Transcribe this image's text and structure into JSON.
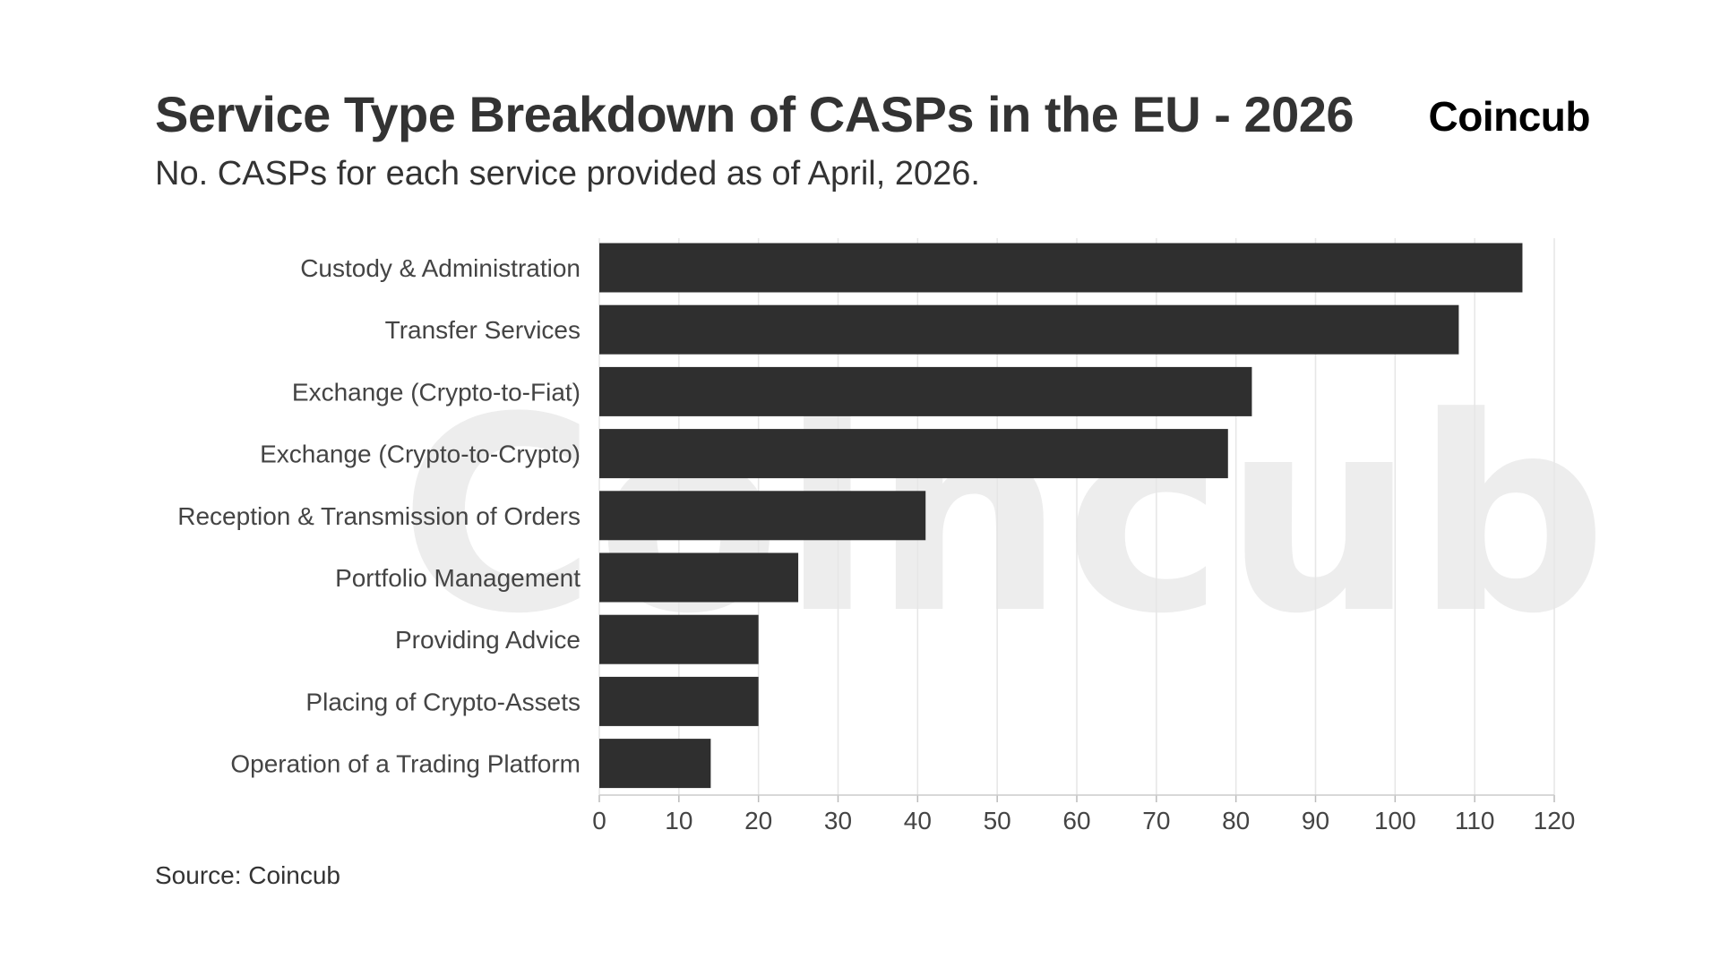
{
  "header": {
    "title": "Service Type Breakdown of CASPs in the EU - 2026",
    "brand": "Coincub"
  },
  "subtitle": "No. CASPs for each service provided as of April, 2026.",
  "source": "Source: Coincub",
  "watermark": "Coincub",
  "colors": {
    "bar": "#2f2f2f",
    "grid": "#e6e6e6",
    "text": "#333333",
    "watermark": "#ededed"
  },
  "chart_data": {
    "type": "bar",
    "orientation": "horizontal",
    "categories": [
      "Custody & Administration",
      "Transfer Services",
      "Exchange (Crypto-to-Fiat)",
      "Exchange (Crypto-to-Crypto)",
      "Reception & Transmission of Orders",
      "Portfolio Management",
      "Providing Advice",
      "Placing of Crypto-Assets",
      "Operation of a Trading Platform"
    ],
    "values": [
      116,
      108,
      82,
      79,
      41,
      25,
      20,
      20,
      14
    ],
    "title": "Service Type Breakdown of CASPs in the EU - 2026",
    "subtitle": "No. CASPs for each service provided as of April, 2026.",
    "xlabel": "",
    "ylabel": "",
    "xlim": [
      0,
      120
    ],
    "xticks": [
      0,
      10,
      20,
      30,
      40,
      50,
      60,
      70,
      80,
      90,
      100,
      110,
      120
    ],
    "grid": "vertical",
    "legend": "none"
  }
}
